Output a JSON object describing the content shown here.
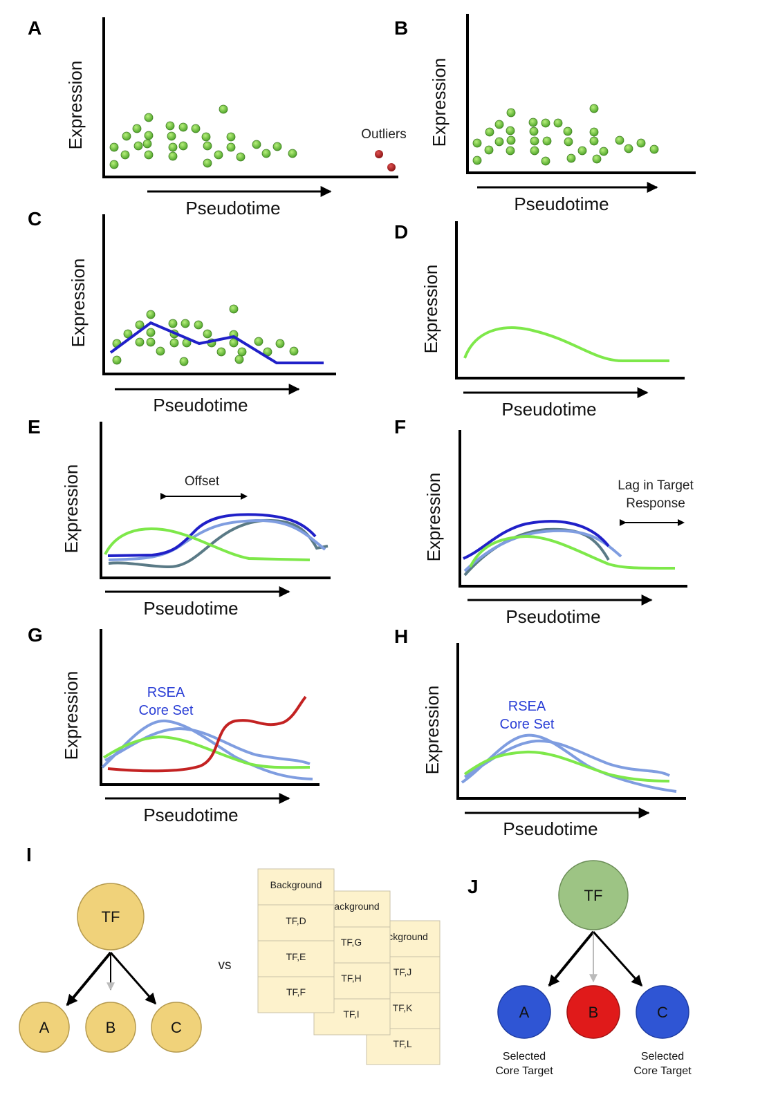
{
  "panels": {
    "A": {
      "letter": "A",
      "ylabel": "Expression",
      "xlabel": "Pseudotime",
      "annotation": "Outliers"
    },
    "B": {
      "letter": "B",
      "ylabel": "Expression",
      "xlabel": "Pseudotime"
    },
    "C": {
      "letter": "C",
      "ylabel": "Expression",
      "xlabel": "Pseudotime"
    },
    "D": {
      "letter": "D",
      "ylabel": "Expression",
      "xlabel": "Pseudotime"
    },
    "E": {
      "letter": "E",
      "ylabel": "Expression",
      "xlabel": "Pseudotime",
      "annotation": "Offset"
    },
    "F": {
      "letter": "F",
      "ylabel": "Expression",
      "xlabel": "Pseudotime",
      "annotation_line1": "Lag in Target",
      "annotation_line2": "Response"
    },
    "G": {
      "letter": "G",
      "ylabel": "Expression",
      "xlabel": "Pseudotime",
      "annotation_line1": "RSEA",
      "annotation_line2": "Core Set"
    },
    "H": {
      "letter": "H",
      "ylabel": "Expression",
      "xlabel": "Pseudotime",
      "annotation_line1": "RSEA",
      "annotation_line2": "Core Set"
    },
    "I": {
      "letter": "I",
      "root": "TF",
      "children": [
        "A",
        "B",
        "C"
      ],
      "vs": "vs",
      "cards": [
        {
          "header": "Background",
          "rows": [
            "TF,D",
            "TF,E",
            "TF,F"
          ]
        },
        {
          "header": "ackground",
          "rows": [
            "TF,G",
            "TF,H",
            "TF,I"
          ]
        },
        {
          "header": "ckground",
          "rows": [
            "TF,J",
            "TF,K",
            "TF,L"
          ]
        }
      ]
    },
    "J": {
      "letter": "J",
      "root": "TF",
      "children": [
        "A",
        "B",
        "C"
      ],
      "note_left_1": "Selected",
      "note_left_2": "Core Target",
      "note_right_1": "Selected",
      "note_right_2": "Core Target"
    }
  },
  "colors": {
    "green_point": "#7fd14a",
    "outlier": "#b42a2a",
    "green_curve": "#7ee84a",
    "dark_blue": "#2020c8",
    "light_blue": "#7f9de0",
    "slate": "#5a7a86",
    "red_curve": "#c32222",
    "node_yellow": "#f0d27a",
    "node_green": "#9dc484",
    "node_blue": "#2f55d4",
    "node_red": "#e01a1a",
    "card_fill": "#fdf2cc"
  }
}
